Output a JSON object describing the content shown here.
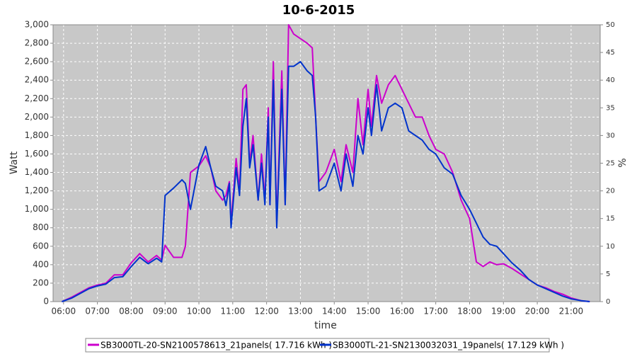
{
  "chart_data": {
    "type": "line",
    "title": "10-6-2015",
    "x_label": "time",
    "y_label": "Watt",
    "y2_label": "%",
    "x": [
      5.95,
      6.25,
      6.5,
      6.75,
      7.0,
      7.25,
      7.5,
      7.75,
      8.0,
      8.25,
      8.5,
      8.75,
      8.9,
      9.0,
      9.25,
      9.5,
      9.6,
      9.75,
      10.0,
      10.2,
      10.35,
      10.5,
      10.7,
      10.8,
      10.9,
      10.95,
      11.1,
      11.2,
      11.3,
      11.4,
      11.5,
      11.6,
      11.75,
      11.85,
      11.95,
      12.05,
      12.1,
      12.2,
      12.3,
      12.45,
      12.55,
      12.65,
      12.8,
      13.0,
      13.2,
      13.35,
      13.45,
      13.55,
      13.75,
      14.0,
      14.2,
      14.35,
      14.55,
      14.7,
      14.85,
      15.0,
      15.1,
      15.25,
      15.4,
      15.6,
      15.8,
      16.0,
      16.2,
      16.4,
      16.6,
      16.8,
      17.0,
      17.25,
      17.5,
      17.75,
      18.0,
      18.2,
      18.4,
      18.6,
      18.8,
      19.0,
      19.25,
      19.5,
      19.75,
      20.0,
      20.25,
      20.5,
      20.75,
      21.0,
      21.3,
      21.55
    ],
    "series": [
      {
        "name": "SB3000TL-20-SN2100578613_21panels( 17.716 kWh )",
        "color": "#cc00cc",
        "values": [
          0,
          50,
          100,
          150,
          180,
          200,
          290,
          290,
          420,
          520,
          430,
          500,
          450,
          610,
          480,
          480,
          600,
          1400,
          1470,
          1580,
          1450,
          1200,
          1100,
          1150,
          1300,
          850,
          1550,
          1200,
          2300,
          2350,
          1500,
          1800,
          1100,
          1600,
          1100,
          2100,
          1050,
          2600,
          850,
          2500,
          1050,
          3000,
          2900,
          2850,
          2800,
          2750,
          2000,
          1300,
          1400,
          1650,
          1300,
          1700,
          1400,
          2200,
          1700,
          2300,
          1900,
          2450,
          2150,
          2350,
          2450,
          2300,
          2150,
          2000,
          2000,
          1800,
          1650,
          1600,
          1400,
          1100,
          900,
          430,
          380,
          430,
          400,
          410,
          360,
          300,
          240,
          180,
          150,
          110,
          80,
          40,
          10,
          0
        ]
      },
      {
        "name": "SB3000TL-21-SN2130032031_19panels( 17.129 kWh )",
        "color": "#0033cc",
        "values": [
          0,
          40,
          90,
          140,
          170,
          190,
          260,
          270,
          380,
          480,
          410,
          470,
          430,
          1150,
          1230,
          1320,
          1280,
          1000,
          1480,
          1680,
          1450,
          1250,
          1200,
          1040,
          1280,
          800,
          1450,
          1150,
          1900,
          2200,
          1450,
          1700,
          1100,
          1500,
          1050,
          2000,
          1050,
          2400,
          800,
          2300,
          1050,
          2550,
          2550,
          2600,
          2500,
          2450,
          2000,
          1200,
          1250,
          1500,
          1200,
          1600,
          1250,
          1800,
          1600,
          2100,
          1800,
          2350,
          1850,
          2100,
          2150,
          2100,
          1850,
          1800,
          1750,
          1650,
          1600,
          1450,
          1380,
          1150,
          1000,
          850,
          700,
          620,
          600,
          520,
          420,
          340,
          240,
          180,
          140,
          100,
          60,
          30,
          10,
          0
        ]
      }
    ],
    "xlim": [
      5.69,
      21.86
    ],
    "xticks": [
      {
        "value": 6,
        "label": "06:00"
      },
      {
        "value": 7,
        "label": "07:00"
      },
      {
        "value": 8,
        "label": "08:00"
      },
      {
        "value": 9,
        "label": "09:00"
      },
      {
        "value": 10,
        "label": "10:00"
      },
      {
        "value": 11,
        "label": "11:00"
      },
      {
        "value": 12,
        "label": "12:00"
      },
      {
        "value": 13,
        "label": "13:00"
      },
      {
        "value": 14,
        "label": "14:00"
      },
      {
        "value": 15,
        "label": "15:00"
      },
      {
        "value": 16,
        "label": "16:00"
      },
      {
        "value": 17,
        "label": "17:00"
      },
      {
        "value": 18,
        "label": "18:00"
      },
      {
        "value": 19,
        "label": "19:00"
      },
      {
        "value": 20,
        "label": "20:00"
      },
      {
        "value": 21,
        "label": "21:00"
      }
    ],
    "ylim": [
      0,
      3000
    ],
    "yticks": [
      0,
      200,
      400,
      600,
      800,
      {
        "value": 1000,
        "label": "1,000"
      },
      {
        "value": 1200,
        "label": "1,200"
      },
      {
        "value": 1400,
        "label": "1,400"
      },
      {
        "value": 1600,
        "label": "1,600"
      },
      {
        "value": 1800,
        "label": "1,800"
      },
      {
        "value": 2000,
        "label": "2,000"
      },
      {
        "value": 2200,
        "label": "2,200"
      },
      {
        "value": 2400,
        "label": "2,400"
      },
      {
        "value": 2600,
        "label": "2,600"
      },
      {
        "value": 2800,
        "label": "2,800"
      },
      {
        "value": 3000,
        "label": "3,000"
      }
    ],
    "y2lim": [
      0,
      50
    ],
    "y2ticks": [
      0,
      5,
      10,
      15,
      20,
      25,
      30,
      35,
      40,
      45,
      50
    ],
    "grid": true
  }
}
